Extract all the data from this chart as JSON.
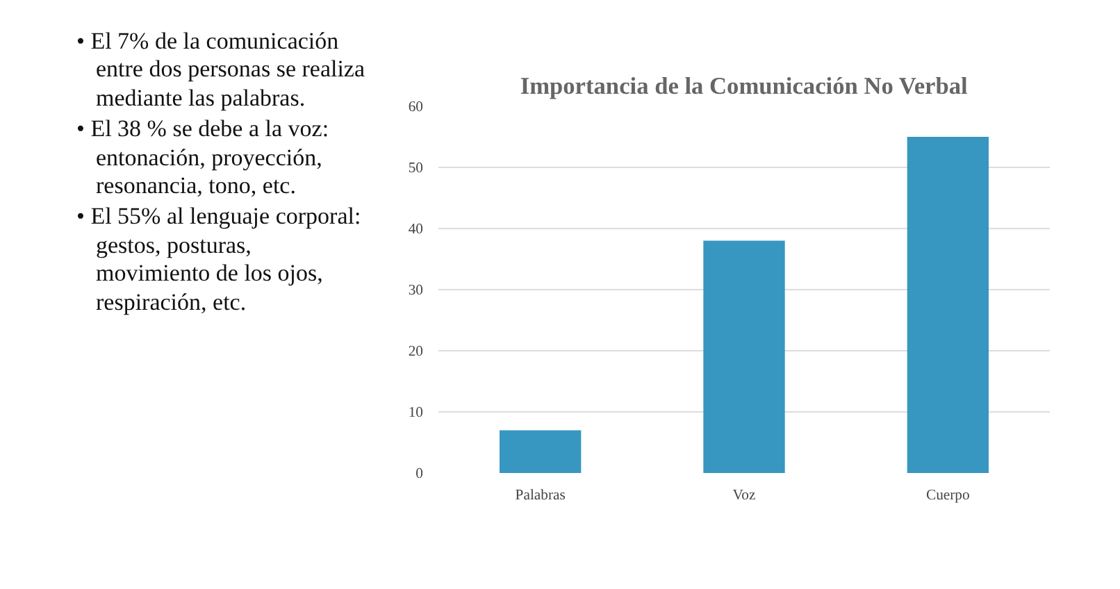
{
  "chart_data": {
    "type": "bar",
    "title": "Importancia de la Comunicación No Verbal",
    "categories": [
      "Palabras",
      "Voz",
      "Cuerpo"
    ],
    "values": [
      7,
      38,
      55
    ],
    "color": "#3797c0",
    "ylim": [
      0,
      60
    ],
    "yticks": [
      0,
      10,
      20,
      30,
      40,
      50,
      60
    ],
    "grid": "y",
    "annotations": [
      "• El 7% de la comunicación entre dos personas se realiza mediante las palabras.",
      "• El 38 % se debe a la voz: entonación, proyección, resonancia, tono, etc.",
      "• El 55% al lenguaje corporal: gestos, posturas, movimiento de los ojos, respiración, etc."
    ]
  }
}
